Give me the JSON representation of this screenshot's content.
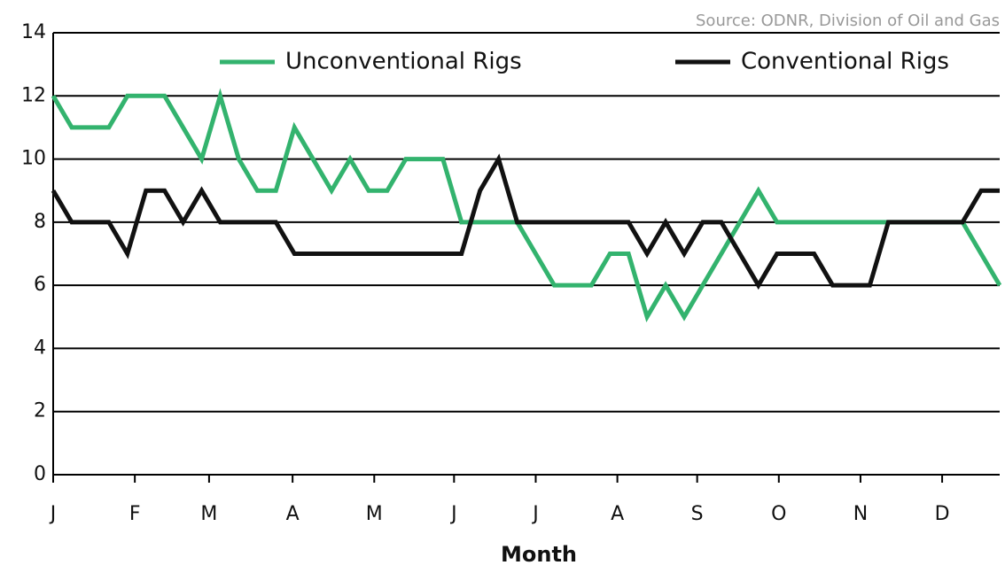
{
  "chart_data": {
    "type": "line",
    "source": "Source: ODNR, Division of Oil and Gas",
    "x_label": "Month",
    "x": [
      0,
      1,
      2,
      3,
      4,
      5,
      6,
      7,
      8,
      9,
      10,
      11,
      12,
      13,
      14,
      15,
      16,
      17,
      18,
      19,
      20,
      21,
      22,
      23,
      24,
      25,
      26,
      27,
      28,
      29,
      30,
      31,
      32,
      33,
      34,
      35,
      36,
      37,
      38,
      39,
      40,
      41,
      42,
      43,
      44,
      45,
      46,
      47,
      48,
      49,
      50,
      51
    ],
    "xlim": [
      0,
      51
    ],
    "xticks": [
      {
        "value": 0,
        "label": "J"
      },
      {
        "value": 4.4,
        "label": "F"
      },
      {
        "value": 8.4,
        "label": "M"
      },
      {
        "value": 12.9,
        "label": "A"
      },
      {
        "value": 17.3,
        "label": "M"
      },
      {
        "value": 21.6,
        "label": "J"
      },
      {
        "value": 26,
        "label": "J"
      },
      {
        "value": 30.4,
        "label": "A"
      },
      {
        "value": 34.7,
        "label": "S"
      },
      {
        "value": 39.1,
        "label": "O"
      },
      {
        "value": 43.5,
        "label": "N"
      },
      {
        "value": 47.9,
        "label": "D"
      }
    ],
    "ylim": [
      0,
      14
    ],
    "yticks": [
      0,
      2,
      4,
      6,
      8,
      10,
      12,
      14
    ],
    "grid": true,
    "legend": "top",
    "series": [
      {
        "name": "Unconventional Rigs",
        "color": "#33b36e",
        "values": [
          12,
          11,
          11,
          11,
          12,
          12,
          12,
          11,
          10,
          12,
          10,
          9,
          9,
          11,
          10,
          9,
          10,
          9,
          9,
          10,
          10,
          10,
          8,
          8,
          8,
          8,
          7,
          6,
          6,
          6,
          7,
          7,
          5,
          6,
          5,
          6,
          7,
          8,
          9,
          8,
          8,
          8,
          8,
          8,
          8,
          8,
          8,
          8,
          8,
          8,
          7,
          6
        ]
      },
      {
        "name": "Conventional Rigs",
        "color": "#111111",
        "values": [
          9,
          8,
          8,
          8,
          7,
          9,
          9,
          8,
          9,
          8,
          8,
          8,
          8,
          7,
          7,
          7,
          7,
          7,
          7,
          7,
          7,
          7,
          7,
          9,
          10,
          8,
          8,
          8,
          8,
          8,
          8,
          8,
          7,
          8,
          7,
          8,
          8,
          7,
          6,
          7,
          7,
          7,
          6,
          6,
          6,
          8,
          8,
          8,
          8,
          8,
          9,
          9
        ]
      }
    ]
  }
}
